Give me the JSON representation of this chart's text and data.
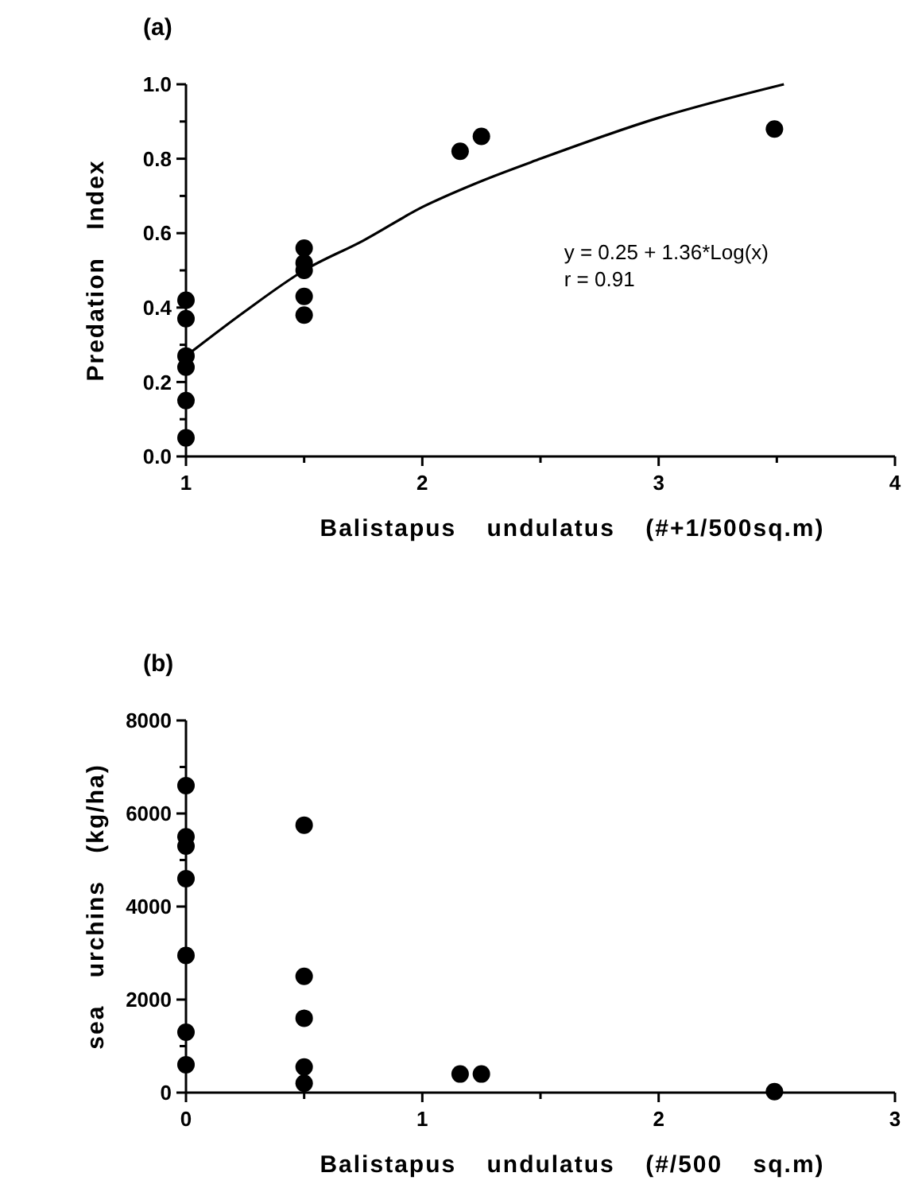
{
  "chart_data": [
    {
      "type": "scatter",
      "title": "(a)",
      "xlabel": "Balistapus undulatus (#+1/500sq.m)",
      "ylabel": "Predation Index",
      "xlim": [
        1,
        4
      ],
      "ylim": [
        0,
        1
      ],
      "xticks": [
        1,
        {
          "value": 1.5,
          "label": null
        },
        2,
        {
          "value": 2.5,
          "label": null
        },
        3,
        {
          "value": 3.5,
          "label": null
        },
        4
      ],
      "yticks": [
        "0.0",
        {
          "value": 0.1,
          "label": null
        },
        {
          "value": 0.2,
          "label": "0.2"
        },
        {
          "value": 0.3,
          "label": null
        },
        {
          "value": 0.4,
          "label": "0.4"
        },
        {
          "value": 0.5,
          "label": null
        },
        {
          "value": 0.6,
          "label": "0.6"
        },
        {
          "value": 0.7,
          "label": null
        },
        {
          "value": 0.8,
          "label": "0.8"
        },
        {
          "value": 0.9,
          "label": null
        },
        {
          "value": 1,
          "label": "1.0"
        }
      ],
      "grid": false,
      "annotations": [
        "y = 0.25 + 1.36*Log(x)",
        "r = 0.91"
      ],
      "series": [
        {
          "marker": "circle",
          "color": "#000000",
          "x": [
            1,
            1,
            1,
            1,
            1,
            1,
            1.5,
            1.5,
            1.5,
            1.5,
            1.5,
            2.16,
            2.25,
            3.49
          ],
          "values": [
            0.42,
            0.37,
            0.27,
            0.24,
            0.15,
            0.05,
            0.56,
            0.52,
            0.5,
            0.43,
            0.38,
            0.82,
            0.86,
            0.88
          ]
        },
        {
          "type": "line",
          "marker": "none",
          "color": "#000000",
          "line_style": "solid",
          "x": [
            1,
            1.25,
            1.5,
            1.75,
            2,
            2.25,
            2.5,
            3,
            3.53
          ],
          "values": [
            0.27,
            0.39,
            0.5,
            0.58,
            0.67,
            0.74,
            0.8,
            0.91,
            1.0
          ]
        }
      ]
    },
    {
      "type": "scatter",
      "title": "(b)",
      "xlabel": "Balistapus undulatus (#/500 sq.m)",
      "ylabel": "sea urchins (kg/ha)",
      "xlim": [
        0,
        3
      ],
      "ylim": [
        0,
        8000
      ],
      "xticks": [
        0,
        {
          "value": 0.5,
          "label": null
        },
        1,
        {
          "value": 1.5,
          "label": null
        },
        2,
        {
          "value": 2.5,
          "label": null
        },
        3
      ],
      "yticks": [
        0,
        {
          "value": 1000,
          "label": null
        },
        2000,
        {
          "value": 3000,
          "label": null
        },
        4000,
        {
          "value": 5000,
          "label": null
        },
        6000,
        {
          "value": 7000,
          "label": null
        },
        8000
      ],
      "grid": false,
      "series": [
        {
          "marker": "circle",
          "color": "#000000",
          "x": [
            0,
            0,
            0,
            0,
            0,
            0,
            0,
            0.5,
            0.5,
            0.5,
            0.5,
            0.5,
            1.16,
            1.25,
            2.49
          ],
          "values": [
            6600,
            5500,
            5300,
            4600,
            2950,
            1300,
            600,
            5750,
            2500,
            1600,
            550,
            200,
            400,
            400,
            20
          ]
        }
      ]
    }
  ]
}
